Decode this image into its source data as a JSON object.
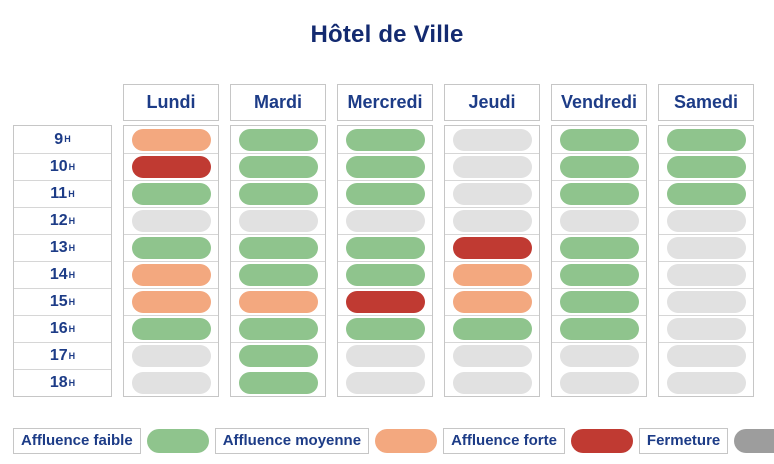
{
  "title": "Hôtel de Ville",
  "legend": [
    {
      "key": "faible",
      "label": "Affluence faible",
      "swatch": "#8fc48d"
    },
    {
      "key": "moyenne",
      "label": "Affluence moyenne",
      "swatch": "#f3a87f"
    },
    {
      "key": "forte",
      "label": "Affluence forte",
      "swatch": "#c03a32"
    },
    {
      "key": "fermeture",
      "label": "Fermeture",
      "swatch": "#9d9d9d"
    }
  ],
  "cell_colors": {
    "faible": "#8fc48d",
    "moyenne": "#f3a87f",
    "forte": "#c03a32",
    "fermeture": "#e1e1e1"
  },
  "text_color": "#1d3c87",
  "title_color": "#132a70",
  "chart_data": {
    "type": "heatmap",
    "title": "Hôtel de Ville",
    "columns": [
      "Lundi",
      "Mardi",
      "Mercredi",
      "Jeudi",
      "Vendredi",
      "Samedi"
    ],
    "rows": [
      "9H",
      "10H",
      "11H",
      "12H",
      "13H",
      "14H",
      "15H",
      "16H",
      "17H",
      "18H"
    ],
    "legend_labels": {
      "faible": "Affluence faible",
      "moyenne": "Affluence moyenne",
      "forte": "Affluence forte",
      "fermeture": "Fermeture"
    },
    "values": {
      "Lundi": [
        "moyenne",
        "forte",
        "faible",
        "fermeture",
        "faible",
        "moyenne",
        "moyenne",
        "faible",
        "fermeture",
        "fermeture"
      ],
      "Mardi": [
        "faible",
        "faible",
        "faible",
        "fermeture",
        "faible",
        "faible",
        "moyenne",
        "faible",
        "faible",
        "faible"
      ],
      "Mercredi": [
        "faible",
        "faible",
        "faible",
        "fermeture",
        "faible",
        "faible",
        "forte",
        "faible",
        "fermeture",
        "fermeture"
      ],
      "Jeudi": [
        "fermeture",
        "fermeture",
        "fermeture",
        "fermeture",
        "forte",
        "moyenne",
        "moyenne",
        "faible",
        "fermeture",
        "fermeture"
      ],
      "Vendredi": [
        "faible",
        "faible",
        "faible",
        "fermeture",
        "faible",
        "faible",
        "faible",
        "faible",
        "fermeture",
        "fermeture"
      ],
      "Samedi": [
        "faible",
        "faible",
        "faible",
        "fermeture",
        "fermeture",
        "fermeture",
        "fermeture",
        "fermeture",
        "fermeture",
        "fermeture"
      ]
    }
  }
}
